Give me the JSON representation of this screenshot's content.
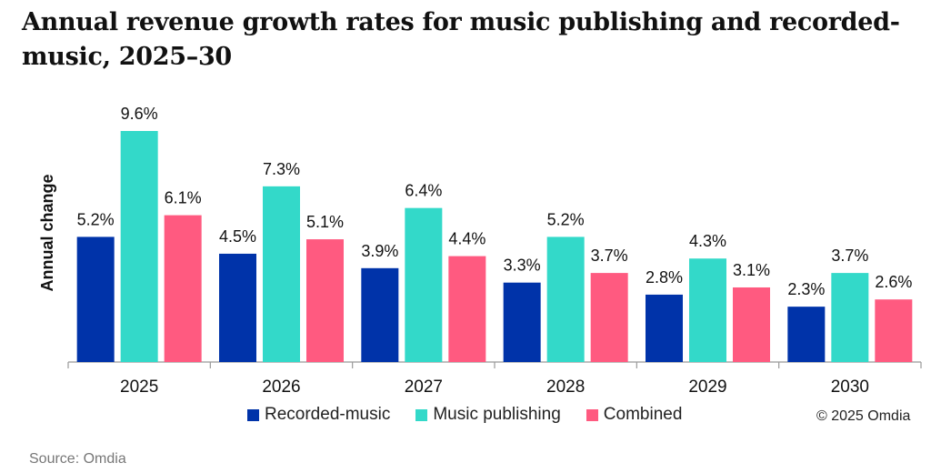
{
  "title": "Annual revenue growth rates for music publishing and recorded-music, 2025–30",
  "source": "Source: Omdia",
  "copyright": "© 2025 Omdia",
  "chart_data": {
    "type": "bar",
    "title": "Annual revenue growth rates for music publishing and recorded-music, 2025–30",
    "xlabel": "",
    "ylabel": "Annual change",
    "ylim": [
      0,
      10
    ],
    "grid": false,
    "legend_position": "bottom",
    "categories": [
      "2025",
      "2026",
      "2027",
      "2028",
      "2029",
      "2030"
    ],
    "series": [
      {
        "name": "Recorded-music",
        "color": "#0033a9",
        "values": [
          5.2,
          4.5,
          3.9,
          3.3,
          2.8,
          2.3
        ],
        "labels": [
          "5.2%",
          "4.5%",
          "3.9%",
          "3.3%",
          "2.8%",
          "2.3%"
        ]
      },
      {
        "name": "Music publishing",
        "color": "#33d9c9",
        "values": [
          9.6,
          7.3,
          6.4,
          5.2,
          4.3,
          3.7
        ],
        "labels": [
          "9.6%",
          "7.3%",
          "6.4%",
          "5.2%",
          "4.3%",
          "3.7%"
        ]
      },
      {
        "name": "Combined",
        "color": "#ff5a80",
        "values": [
          6.1,
          5.1,
          4.4,
          3.7,
          3.1,
          2.6
        ],
        "labels": [
          "6.1%",
          "5.1%",
          "4.4%",
          "3.7%",
          "3.1%",
          "2.6%"
        ]
      }
    ]
  }
}
